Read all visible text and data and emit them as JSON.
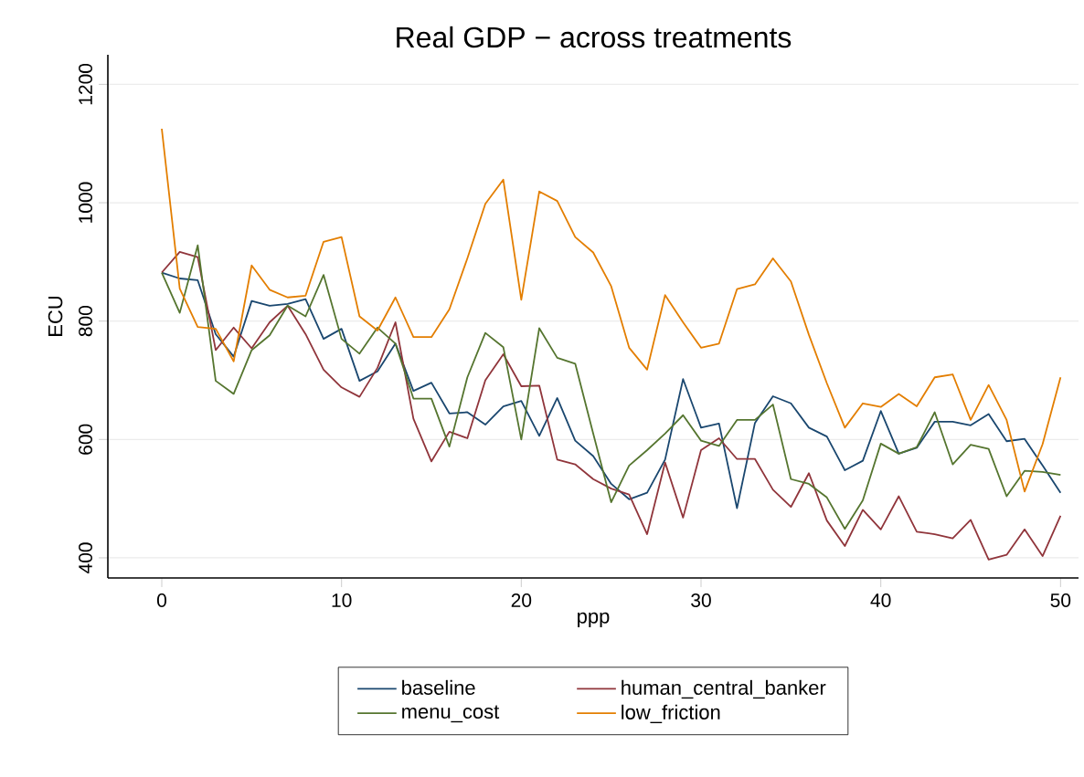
{
  "chart_data": {
    "type": "line",
    "title": "Real GDP − across treatments",
    "xlabel": "ppp",
    "ylabel": "ECU",
    "x": [
      0,
      1,
      2,
      3,
      4,
      5,
      6,
      7,
      8,
      9,
      10,
      11,
      12,
      13,
      14,
      15,
      16,
      17,
      18,
      19,
      20,
      21,
      22,
      23,
      24,
      25,
      26,
      27,
      28,
      29,
      30,
      31,
      32,
      33,
      34,
      35,
      36,
      37,
      38,
      39,
      40,
      41,
      42,
      43,
      44,
      45,
      46,
      47,
      48,
      49,
      50
    ],
    "series": [
      {
        "name": "baseline",
        "color": "#1a476f",
        "values": [
          882,
          872,
          869,
          778,
          740,
          834,
          826,
          829,
          837,
          770,
          787,
          699,
          715,
          762,
          682,
          696,
          644,
          646,
          625,
          656,
          665,
          606,
          670,
          598,
          572,
          525,
          499,
          510,
          566,
          702,
          620,
          627,
          484,
          628,
          673,
          661,
          620,
          605,
          548,
          564,
          648,
          576,
          586,
          630,
          630,
          624,
          643,
          597,
          601,
          556,
          510
        ]
      },
      {
        "name": "human_central_banker",
        "color": "#90353b",
        "values": [
          882,
          917,
          908,
          751,
          789,
          754,
          798,
          826,
          778,
          718,
          688,
          672,
          721,
          798,
          635,
          563,
          613,
          602,
          700,
          744,
          690,
          691,
          566,
          558,
          533,
          517,
          507,
          440,
          561,
          468,
          582,
          602,
          567,
          567,
          515,
          486,
          543,
          463,
          420,
          481,
          448,
          504,
          444,
          440,
          433,
          464,
          397,
          405,
          448,
          403,
          471
        ]
      },
      {
        "name": "menu_cost",
        "color": "#55752f",
        "values": [
          882,
          814,
          928,
          699,
          677,
          751,
          776,
          826,
          808,
          878,
          770,
          745,
          789,
          762,
          669,
          669,
          588,
          705,
          780,
          756,
          600,
          788,
          738,
          728,
          610,
          494,
          556,
          582,
          610,
          641,
          598,
          589,
          633,
          633,
          659,
          533,
          525,
          502,
          449,
          497,
          593,
          576,
          587,
          646,
          558,
          591,
          584,
          504,
          547,
          545,
          540
        ]
      },
      {
        "name": "low_friction",
        "color": "#e37e00",
        "values": [
          1125,
          855,
          790,
          787,
          732,
          894,
          853,
          840,
          843,
          934,
          942,
          808,
          784,
          840,
          773,
          773,
          820,
          906,
          998,
          1039,
          836,
          1019,
          1003,
          942,
          916,
          859,
          755,
          718,
          844,
          798,
          755,
          762,
          854,
          862,
          906,
          867,
          777,
          695,
          620,
          661,
          655,
          677,
          656,
          705,
          710,
          633,
          692,
          633,
          512,
          592,
          705
        ]
      }
    ],
    "xlim": [
      -3,
      51
    ],
    "ylim": [
      366,
      1250
    ],
    "xticks": [
      0,
      10,
      20,
      30,
      40,
      50
    ],
    "yticks": [
      400,
      600,
      800,
      1000,
      1200
    ],
    "grid": "y",
    "legend": "bottom"
  }
}
